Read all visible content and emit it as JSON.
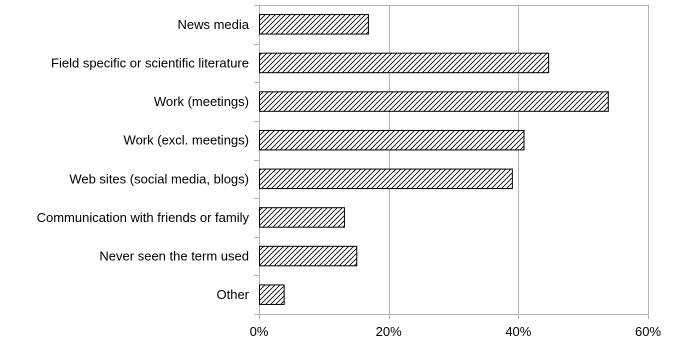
{
  "chart_data": {
    "type": "bar",
    "orientation": "horizontal",
    "categories": [
      "News media",
      "Field specific or scientific literature",
      "Work (meetings)",
      "Work (excl. meetings)",
      "Web sites (social media, blogs)",
      "Communication with friends or family",
      "Never seen the term used",
      "Other"
    ],
    "values": [
      16.8,
      44.6,
      53.8,
      40.8,
      39.0,
      13.1,
      15.0,
      3.8
    ],
    "xlim": [
      0,
      60
    ],
    "xticks": [
      0,
      20,
      40,
      60
    ],
    "tick_labels": [
      "0%",
      "20%",
      "40%",
      "60%"
    ],
    "grid": true,
    "bar_fill": "diagonal-hatch",
    "bar_color": "#000000",
    "grid_color": "#b3b3b3",
    "title": "",
    "xlabel": "",
    "ylabel": ""
  }
}
